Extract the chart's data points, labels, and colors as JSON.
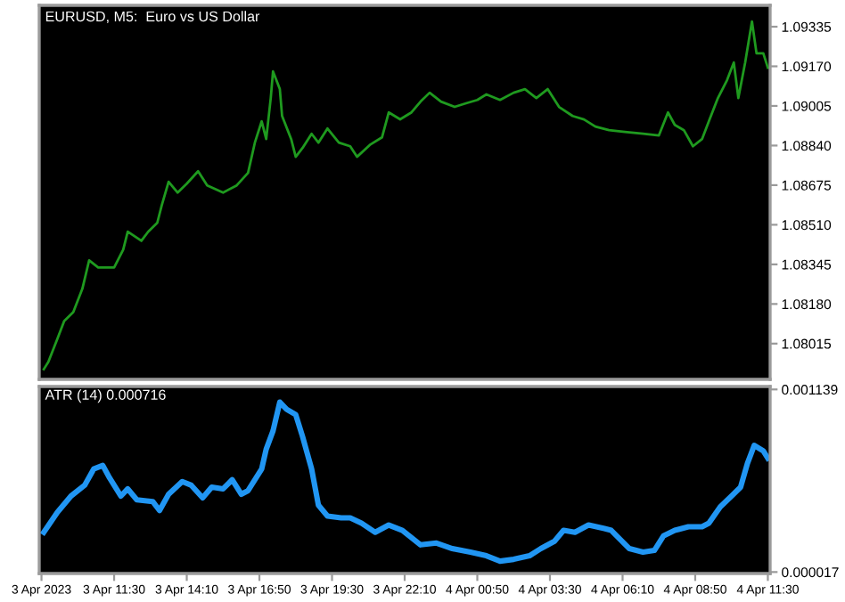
{
  "chart_data": [
    {
      "type": "line",
      "title": "EURUSD, M5:  Euro vs US Dollar",
      "tick_labels": "y",
      "grid": false,
      "legend": false,
      "line_style": "solid",
      "marker": "none",
      "xlim": [
        "2023-04-03T08:45",
        "2023-04-04T11:35"
      ],
      "ylim": [
        1.07866,
        1.09424
      ],
      "yticks": [
        1.09335,
        {
          "value": 1.0917,
          "label": "1.09170"
        },
        1.09005,
        {
          "value": 1.0884,
          "label": "1.08840"
        },
        1.08675,
        {
          "value": 1.0851,
          "label": "1.08510"
        },
        1.08345,
        {
          "value": 1.0818,
          "label": "1.08180"
        },
        1.08015
      ],
      "series": [
        {
          "color": "#1f9a1f",
          "x": [
            "2023-04-03T08:55",
            "2023-04-03T09:05",
            "2023-04-03T09:25",
            "2023-04-03T09:40",
            "2023-04-03T10:00",
            "2023-04-03T10:20",
            "2023-04-03T10:35",
            "2023-04-03T10:55",
            "2023-04-03T11:30",
            "2023-04-03T11:50",
            "2023-04-03T12:00",
            "2023-04-03T12:30",
            "2023-04-03T12:45",
            "2023-04-03T13:05",
            "2023-04-03T13:15",
            "2023-04-03T13:30",
            "2023-04-03T13:50",
            "2023-04-03T14:10",
            "2023-04-03T14:35",
            "2023-04-03T14:55",
            "2023-04-03T15:30",
            "2023-04-03T16:00",
            "2023-04-03T16:25",
            "2023-04-03T16:40",
            "2023-04-03T16:55",
            "2023-04-03T17:05",
            "2023-04-03T17:15",
            "2023-04-03T17:20",
            "2023-04-03T17:35",
            "2023-04-03T17:40",
            "2023-04-03T18:00",
            "2023-04-03T18:10",
            "2023-04-03T18:25",
            "2023-04-03T18:45",
            "2023-04-03T19:00",
            "2023-04-03T19:20",
            "2023-04-03T19:45",
            "2023-04-03T20:10",
            "2023-04-03T20:25",
            "2023-04-03T20:55",
            "2023-04-03T21:20",
            "2023-04-03T21:35",
            "2023-04-03T22:00",
            "2023-04-03T22:25",
            "2023-04-03T22:45",
            "2023-04-03T23:05",
            "2023-04-03T23:30",
            "2023-04-04T00:00",
            "2023-04-04T00:25",
            "2023-04-04T00:50",
            "2023-04-04T01:10",
            "2023-04-04T01:40",
            "2023-04-04T02:10",
            "2023-04-04T02:35",
            "2023-04-04T03:00",
            "2023-04-04T03:25",
            "2023-04-04T03:50",
            "2023-04-04T04:20",
            "2023-04-04T04:45",
            "2023-04-04T05:10",
            "2023-04-04T05:40",
            "2023-04-04T06:15",
            "2023-04-04T06:55",
            "2023-04-04T07:30",
            "2023-04-04T07:50",
            "2023-04-04T08:05",
            "2023-04-04T08:25",
            "2023-04-04T08:45",
            "2023-04-04T09:05",
            "2023-04-04T09:20",
            "2023-04-04T09:40",
            "2023-04-04T10:00",
            "2023-04-04T10:15",
            "2023-04-04T10:25",
            "2023-04-04T10:40",
            "2023-04-04T10:55",
            "2023-04-04T11:05",
            "2023-04-04T11:20",
            "2023-04-04T11:30"
          ],
          "values": [
            1.07908,
            1.07938,
            1.08035,
            1.08109,
            1.08146,
            1.08243,
            1.08362,
            1.08332,
            1.08332,
            1.08406,
            1.08481,
            1.08443,
            1.08481,
            1.08518,
            1.08592,
            1.08689,
            1.08644,
            1.08681,
            1.08733,
            1.08674,
            1.08644,
            1.08674,
            1.08726,
            1.08852,
            1.08941,
            1.08867,
            1.09038,
            1.09149,
            1.09075,
            1.08963,
            1.08867,
            1.08793,
            1.0883,
            1.08889,
            1.08852,
            1.08911,
            1.08852,
            1.08837,
            1.08793,
            1.08845,
            1.08874,
            1.08978,
            1.08949,
            1.08978,
            1.09023,
            1.0906,
            1.09023,
            1.09001,
            1.09016,
            1.0903,
            1.09053,
            1.0903,
            1.0906,
            1.09075,
            1.09038,
            1.09075,
            1.09001,
            1.08963,
            1.08949,
            1.08919,
            1.08904,
            1.08897,
            1.08889,
            1.08882,
            1.08978,
            1.08926,
            1.08904,
            1.08837,
            1.08867,
            1.08941,
            1.09038,
            1.09112,
            1.09186,
            1.09038,
            1.09186,
            1.09357,
            1.09224,
            1.09224,
            1.09164
          ]
        }
      ]
    },
    {
      "type": "line",
      "title": "ATR (14) 0.000716",
      "grid": false,
      "legend": false,
      "line_style": "solid",
      "marker": "none",
      "xlim": [
        "2023-04-03T08:45",
        "2023-04-04T11:35"
      ],
      "xticks": [
        {
          "value": "2023-04-03T08:50",
          "label": "3 Apr 2023"
        },
        {
          "value": "2023-04-03T11:30",
          "label": "3 Apr 11:30"
        },
        {
          "value": "2023-04-03T14:10",
          "label": "3 Apr 14:10"
        },
        {
          "value": "2023-04-03T16:50",
          "label": "3 Apr 16:50"
        },
        {
          "value": "2023-04-03T19:30",
          "label": "3 Apr 19:30"
        },
        {
          "value": "2023-04-03T22:10",
          "label": "3 Apr 22:10"
        },
        {
          "value": "2023-04-04T00:50",
          "label": "4 Apr 00:50"
        },
        {
          "value": "2023-04-04T03:30",
          "label": "4 Apr 03:30"
        },
        {
          "value": "2023-04-04T06:10",
          "label": "4 Apr 06:10"
        },
        {
          "value": "2023-04-04T08:50",
          "label": "4 Apr 08:50"
        },
        {
          "value": "2023-04-04T11:30",
          "label": "4 Apr 11:30"
        }
      ],
      "ylim": [
        8e-06,
        0.001157
      ],
      "yticks": [
        0.001139,
        {
          "value": 1.7e-05,
          "label": "0.000017"
        }
      ],
      "series": [
        {
          "color": "#2196f3",
          "x": [
            "2023-04-03T08:55",
            "2023-04-03T09:25",
            "2023-04-03T09:55",
            "2023-04-03T10:25",
            "2023-04-03T10:45",
            "2023-04-03T11:05",
            "2023-04-03T11:20",
            "2023-04-03T11:45",
            "2023-04-03T12:00",
            "2023-04-03T12:20",
            "2023-04-03T12:55",
            "2023-04-03T13:10",
            "2023-04-03T13:30",
            "2023-04-03T14:00",
            "2023-04-03T14:20",
            "2023-04-03T14:45",
            "2023-04-03T15:05",
            "2023-04-03T15:30",
            "2023-04-03T15:50",
            "2023-04-03T16:10",
            "2023-04-03T16:25",
            "2023-04-03T16:55",
            "2023-04-03T17:05",
            "2023-04-03T17:20",
            "2023-04-03T17:35",
            "2023-04-03T17:50",
            "2023-04-03T18:10",
            "2023-04-03T18:25",
            "2023-04-03T18:45",
            "2023-04-03T19:00",
            "2023-04-03T19:20",
            "2023-04-03T19:50",
            "2023-04-03T20:10",
            "2023-04-03T20:35",
            "2023-04-03T21:05",
            "2023-04-03T21:35",
            "2023-04-03T22:05",
            "2023-04-03T22:45",
            "2023-04-03T23:20",
            "2023-04-03T23:55",
            "2023-04-04T00:35",
            "2023-04-04T01:10",
            "2023-04-04T01:40",
            "2023-04-04T02:10",
            "2023-04-04T02:45",
            "2023-04-04T03:10",
            "2023-04-04T03:40",
            "2023-04-04T04:00",
            "2023-04-04T04:25",
            "2023-04-04T04:55",
            "2023-04-04T05:30",
            "2023-04-04T05:45",
            "2023-04-04T06:25",
            "2023-04-04T06:55",
            "2023-04-04T07:20",
            "2023-04-04T07:40",
            "2023-04-04T08:05",
            "2023-04-04T08:35",
            "2023-04-04T09:05",
            "2023-04-04T09:20",
            "2023-04-04T09:45",
            "2023-04-04T10:10",
            "2023-04-04T10:30",
            "2023-04-04T10:45",
            "2023-04-04T11:00",
            "2023-04-04T11:20",
            "2023-04-04T11:30"
          ],
          "values": [
            0.000261,
            0.000384,
            0.000484,
            0.00055,
            0.00065,
            0.000672,
            0.000595,
            0.000484,
            0.000528,
            0.000461,
            0.00045,
            0.000395,
            0.000495,
            0.000573,
            0.00055,
            0.000473,
            0.000539,
            0.000528,
            0.000584,
            0.000495,
            0.000517,
            0.00065,
            0.000772,
            0.000884,
            0.001061,
            0.001017,
            0.000984,
            0.00085,
            0.00065,
            0.000428,
            0.000361,
            0.00035,
            0.00035,
            0.000317,
            0.000261,
            0.000306,
            0.000273,
            0.000184,
            0.000195,
            0.000161,
            0.000139,
            0.000117,
            8.4e-05,
            9.5e-05,
            0.000117,
            0.000161,
            0.000206,
            0.000273,
            0.000261,
            0.000306,
            0.000284,
            0.000273,
            0.000161,
            0.000139,
            0.00015,
            0.000239,
            0.000273,
            0.000295,
            0.000295,
            0.000317,
            0.000417,
            0.000484,
            0.000539,
            0.000684,
            0.000795,
            0.000761,
            0.000716
          ]
        }
      ]
    }
  ]
}
